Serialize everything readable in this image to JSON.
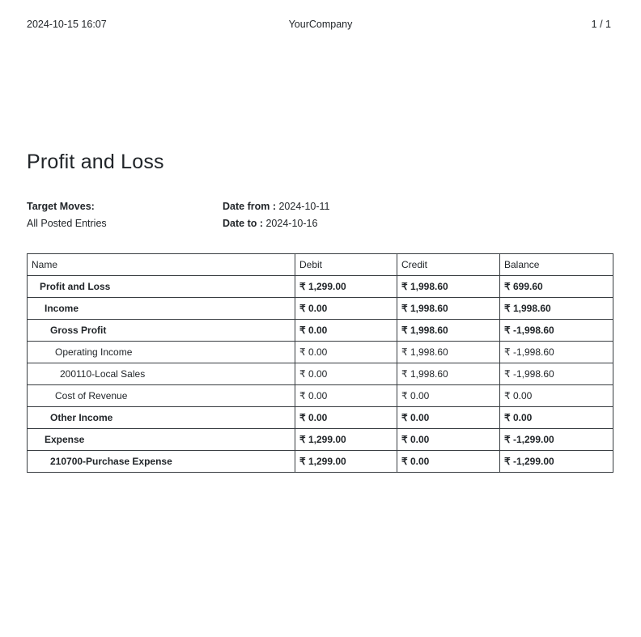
{
  "header": {
    "datetime": "2024-10-15 16:07",
    "company": "YourCompany",
    "page_indicator": "1 / 1"
  },
  "title": "Profit and Loss",
  "filters": {
    "target_moves_label": "Target Moves:",
    "target_moves_value": "All Posted Entries",
    "date_from_label": "Date from :",
    "date_from_value": "2024-10-11",
    "date_to_label": "Date to :",
    "date_to_value": "2024-10-16"
  },
  "table": {
    "columns": [
      "Name",
      "Debit",
      "Credit",
      "Balance"
    ],
    "rows": [
      {
        "name": "Profit and Loss",
        "debit": "₹ 1,299.00",
        "credit": "₹ 1,998.60",
        "balance": "₹ 699.60",
        "bold": true,
        "level": 0
      },
      {
        "name": "Income",
        "debit": "₹ 0.00",
        "credit": "₹ 1,998.60",
        "balance": "₹ 1,998.60",
        "bold": true,
        "level": 1
      },
      {
        "name": "Gross Profit",
        "debit": "₹ 0.00",
        "credit": "₹ 1,998.60",
        "balance": "₹ -1,998.60",
        "bold": true,
        "level": 2
      },
      {
        "name": "Operating Income",
        "debit": "₹ 0.00",
        "credit": "₹ 1,998.60",
        "balance": "₹ -1,998.60",
        "bold": false,
        "level": 3
      },
      {
        "name": "200110-Local Sales",
        "debit": "₹ 0.00",
        "credit": "₹ 1,998.60",
        "balance": "₹ -1,998.60",
        "bold": false,
        "level": 4
      },
      {
        "name": "Cost of Revenue",
        "debit": "₹ 0.00",
        "credit": "₹ 0.00",
        "balance": "₹ 0.00",
        "bold": false,
        "level": 3
      },
      {
        "name": "Other Income",
        "debit": "₹ 0.00",
        "credit": "₹ 0.00",
        "balance": "₹ 0.00",
        "bold": true,
        "level": 2
      },
      {
        "name": "Expense",
        "debit": "₹ 1,299.00",
        "credit": "₹ 0.00",
        "balance": "₹ -1,299.00",
        "bold": true,
        "level": 1
      },
      {
        "name": "210700-Purchase Expense",
        "debit": "₹ 1,299.00",
        "credit": "₹ 0.00",
        "balance": "₹ -1,299.00",
        "bold": true,
        "level": 2
      }
    ]
  },
  "colors": {
    "text": "#212529",
    "table_border": "#383d41",
    "background": "#ffffff"
  }
}
